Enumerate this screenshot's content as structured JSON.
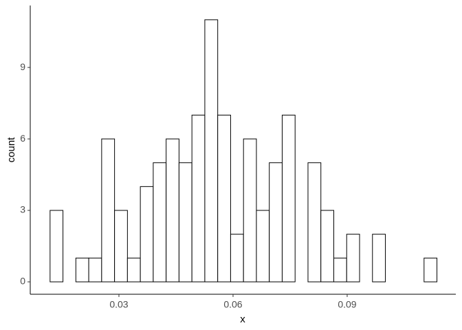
{
  "chart_data": {
    "type": "histogram",
    "x_label": "x",
    "y_label": "count",
    "bins": [
      0.0119,
      0.01529,
      0.01868,
      0.02207,
      0.02546,
      0.02885,
      0.03224,
      0.03563,
      0.03902,
      0.04241,
      0.0458,
      0.04919,
      0.05258,
      0.05597,
      0.05936,
      0.06275,
      0.06614,
      0.06953,
      0.07292,
      0.07631,
      0.0797,
      0.08309,
      0.08648,
      0.08987,
      0.09326,
      0.09665,
      0.10004,
      0.10343,
      0.10682,
      0.11021,
      0.1136
    ],
    "values": [
      3,
      0,
      1,
      1,
      6,
      3,
      1,
      4,
      5,
      6,
      5,
      7,
      11,
      7,
      2,
      6,
      3,
      5,
      7,
      0,
      5,
      3,
      1,
      2,
      0,
      2,
      0,
      0,
      0,
      1
    ],
    "color": "#ffffff",
    "edge_color": "#000000",
    "xlim": [
      0.00669,
      0.11856
    ],
    "xticks": [
      0.03,
      0.06,
      0.09
    ],
    "ylim": [
      -0.52,
      11.6
    ],
    "yticks": [
      0,
      3,
      6,
      9
    ],
    "grid": false
  }
}
